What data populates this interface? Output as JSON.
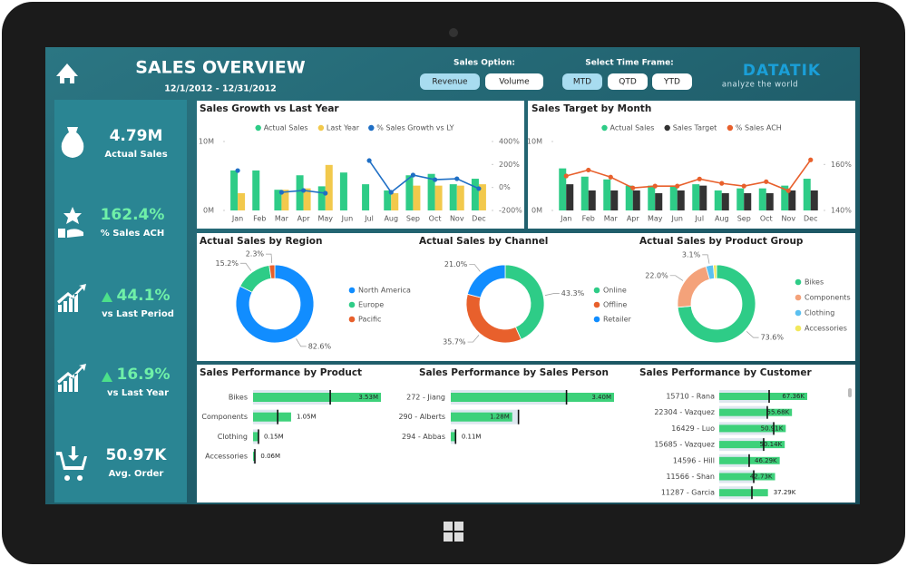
{
  "header": {
    "title": "SALES OVERVIEW",
    "date_range": "12/1/2012 - 12/31/2012",
    "sales_option_label": "Sales Option:",
    "sales_options": [
      "Revenue",
      "Volume"
    ],
    "time_frame_label": "Select Time Frame:",
    "time_frames": [
      "MTD",
      "QTD",
      "YTD"
    ],
    "logo": "DATATIK",
    "logo_tagline": "analyze the world"
  },
  "kpis": [
    {
      "value": "4.79M",
      "label": "Actual Sales"
    },
    {
      "value": "162.4%",
      "label": "% Sales ACH"
    },
    {
      "value": "44.1%",
      "label": "vs Last Period"
    },
    {
      "value": "16.9%",
      "label": "vs Last Year"
    },
    {
      "value": "50.97K",
      "label": "Avg. Order"
    }
  ],
  "chart_data": [
    {
      "type": "combo",
      "title": "Sales Growth vs Last Year",
      "categories": [
        "Jan",
        "Feb",
        "Mar",
        "Apr",
        "May",
        "Jun",
        "Jul",
        "Aug",
        "Sep",
        "Oct",
        "Nov",
        "Dec"
      ],
      "series": [
        {
          "name": "Actual Sales",
          "color": "#2ecc87",
          "type": "bar",
          "values": [
            5.8,
            5.8,
            3.0,
            5.1,
            3.5,
            5.5,
            3.8,
            2.9,
            5.1,
            5.3,
            3.8,
            4.6
          ]
        },
        {
          "name": "Last Year",
          "color": "#f2c94c",
          "type": "bar",
          "values": [
            2.5,
            null,
            3.0,
            3.2,
            6.6,
            null,
            null,
            2.5,
            3.6,
            3.6,
            3.6,
            3.8
          ]
        },
        {
          "name": "% Sales Growth vs LY",
          "color": "#1f6fc5",
          "type": "line",
          "axis": "y2",
          "values": [
            147,
            null,
            -42,
            -26,
            -50,
            null,
            234,
            -42,
            108,
            68,
            76,
            -10
          ]
        }
      ],
      "ylim": [
        0,
        10
      ],
      "yticks": [
        {
          "value": 0,
          "label": "0M"
        },
        {
          "value": 10,
          "label": "10M"
        }
      ],
      "y2lim": [
        -200,
        400
      ],
      "y2ticks": [
        {
          "value": 400,
          "label": "400%"
        },
        {
          "value": 200,
          "label": "200%"
        },
        {
          "value": 0,
          "label": "0%"
        },
        {
          "value": -200,
          "label": "-200%"
        }
      ]
    },
    {
      "type": "combo",
      "title": "Sales Target by Month",
      "categories": [
        "Jan",
        "Feb",
        "Mar",
        "Apr",
        "May",
        "Jun",
        "Jul",
        "Aug",
        "Sep",
        "Oct",
        "Nov",
        "Dec"
      ],
      "series": [
        {
          "name": "Actual Sales",
          "color": "#2ecc87",
          "type": "bar",
          "values": [
            6.1,
            4.9,
            4.5,
            3.6,
            3.6,
            3.6,
            3.8,
            2.9,
            3.2,
            3.2,
            3.6,
            4.6
          ]
        },
        {
          "name": "Sales Target",
          "color": "#333333",
          "type": "bar",
          "values": [
            3.8,
            2.9,
            2.9,
            2.9,
            2.5,
            2.9,
            3.6,
            2.5,
            2.5,
            2.5,
            2.9,
            2.9
          ]
        },
        {
          "name": "% Sales ACH",
          "color": "#e8602c",
          "type": "line",
          "axis": "y2",
          "values": [
            155,
            157.6,
            154.5,
            149.8,
            150.6,
            150.6,
            153.7,
            151.8,
            150.6,
            152.5,
            148.6,
            162
          ]
        }
      ],
      "ylim": [
        0,
        10
      ],
      "yticks": [
        {
          "value": 0,
          "label": "0M"
        },
        {
          "value": 10,
          "label": "10M"
        }
      ],
      "y2lim": [
        140,
        170
      ],
      "y2ticks": [
        {
          "value": 160,
          "label": "160%"
        },
        {
          "value": 140,
          "label": "140%"
        }
      ]
    },
    {
      "type": "donut",
      "title": "Actual Sales by Region",
      "categories": [
        "North America",
        "Europe",
        "Pacific"
      ],
      "values": [
        82.6,
        15.2,
        2.3
      ],
      "value_labels": [
        "82.6%",
        "15.2%",
        "2.3%"
      ],
      "colors": [
        "#118dff",
        "#2ecc87",
        "#e8602c"
      ]
    },
    {
      "type": "donut",
      "title": "Actual Sales by Channel",
      "categories": [
        "Online",
        "Offline",
        "Retailer"
      ],
      "values": [
        43.3,
        35.7,
        21.0
      ],
      "value_labels": [
        "43.3%",
        "35.7%",
        "21.0%"
      ],
      "colors": [
        "#2ecc87",
        "#e8602c",
        "#118dff"
      ]
    },
    {
      "type": "donut",
      "title": "Actual Sales by Product Group",
      "categories": [
        "Bikes",
        "Components",
        "Clothing",
        "Accessories"
      ],
      "values": [
        73.6,
        22.0,
        3.1,
        1.3
      ],
      "value_labels": [
        "73.6%",
        "22.0%",
        "3.1%",
        null
      ],
      "colors": [
        "#2ecc87",
        "#f4a27a",
        "#5bc0f0",
        "#f2e85c"
      ]
    },
    {
      "type": "bullet",
      "title": "Sales Performance by Product",
      "categories": [
        "Bikes",
        "Components",
        "Clothing",
        "Accessories"
      ],
      "values": [
        3.53,
        1.05,
        0.15,
        0.06
      ],
      "value_labels": [
        "3.53M",
        "1.05M",
        "0.15M",
        "0.06M"
      ],
      "targets": [
        2.13,
        0.68,
        0.15,
        0.05
      ],
      "color": "#3dd17a"
    },
    {
      "type": "bullet",
      "title": "Sales Performance by Sales Person",
      "categories": [
        "272 - Jiang",
        "290 - Alberts",
        "294 - Abbas"
      ],
      "values": [
        3.4,
        1.28,
        0.11
      ],
      "value_labels": [
        "3.40M",
        "1.28M",
        "0.11M"
      ],
      "targets": [
        2.41,
        1.41,
        0.1
      ],
      "color": "#3dd17a"
    },
    {
      "type": "bullet",
      "title": "Sales Performance by Customer",
      "categories": [
        "15710 - Rana",
        "22304 - Vazquez",
        "16429 - Luo",
        "15685 - Vazquez",
        "14596 - Hill",
        "11566 - Shan",
        "11287 - Garcia"
      ],
      "values": [
        67.36,
        55.68,
        50.91,
        50.14,
        46.29,
        42.73,
        37.29
      ],
      "value_labels": [
        "67.36K",
        "55.68K",
        "50.91K",
        "50.14K",
        "46.29K",
        "42.73K",
        "37.29K"
      ],
      "targets": [
        38.2,
        36.8,
        41.7,
        34.0,
        22.9,
        26.4,
        25.0
      ],
      "color": "#3dd17a"
    }
  ]
}
